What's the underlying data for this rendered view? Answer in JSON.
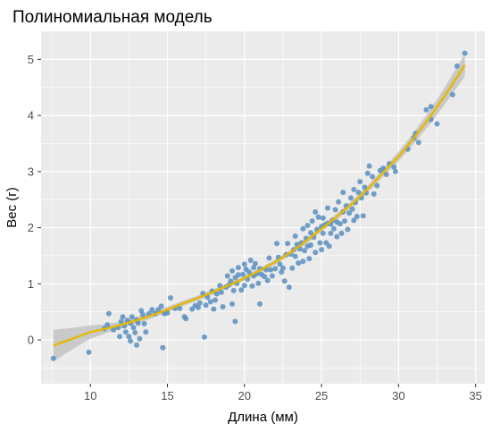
{
  "chart_data": {
    "type": "scatter",
    "title": "Полиномиальная модель",
    "xlabel": "Длина (мм)",
    "ylabel": "Вес (г)",
    "xlim": [
      6.8,
      35.6
    ],
    "ylim": [
      -0.78,
      5.5
    ],
    "x_ticks": [
      10,
      15,
      20,
      25,
      30,
      35
    ],
    "y_ticks": [
      0,
      1,
      2,
      3,
      4,
      5
    ],
    "grid": true,
    "colors": {
      "panel": "#ebebeb",
      "grid_major": "#ffffff",
      "points": "#5b8fc0",
      "fit_line": "#e6b800",
      "ribbon": "#bdbdbd"
    },
    "series": [
      {
        "type": "scatter",
        "values": [
          [
            7.6,
            -0.33
          ],
          [
            9.9,
            -0.22
          ],
          [
            10.9,
            0.2
          ],
          [
            11.1,
            0.27
          ],
          [
            11.2,
            0.47
          ],
          [
            11.5,
            0.18
          ],
          [
            11.8,
            0.22
          ],
          [
            11.9,
            0.06
          ],
          [
            12.0,
            0.33
          ],
          [
            12.1,
            0.41
          ],
          [
            12.2,
            0.25
          ],
          [
            12.3,
            0.14
          ],
          [
            12.4,
            0.35
          ],
          [
            12.5,
            0.06
          ],
          [
            12.6,
            0.3
          ],
          [
            12.6,
            -0.02
          ],
          [
            12.7,
            0.41
          ],
          [
            12.8,
            0.22
          ],
          [
            12.9,
            0.13
          ],
          [
            13.0,
            -0.09
          ],
          [
            13.0,
            0.36
          ],
          [
            13.1,
            0.3
          ],
          [
            13.2,
            0.02
          ],
          [
            13.3,
            0.52
          ],
          [
            13.4,
            0.45
          ],
          [
            13.5,
            0.29
          ],
          [
            13.6,
            0.14
          ],
          [
            13.8,
            0.47
          ],
          [
            14.0,
            0.54
          ],
          [
            14.2,
            0.47
          ],
          [
            14.4,
            0.54
          ],
          [
            14.6,
            0.6
          ],
          [
            14.8,
            0.47
          ],
          [
            15.0,
            0.48
          ],
          [
            14.7,
            -0.14
          ],
          [
            15.2,
            0.75
          ],
          [
            15.5,
            0.56
          ],
          [
            15.8,
            0.56
          ],
          [
            16.1,
            0.41
          ],
          [
            16.2,
            0.38
          ],
          [
            16.6,
            0.55
          ],
          [
            16.8,
            0.61
          ],
          [
            17.0,
            0.58
          ],
          [
            17.1,
            0.66
          ],
          [
            17.3,
            0.83
          ],
          [
            17.4,
            0.05
          ],
          [
            17.5,
            0.62
          ],
          [
            17.6,
            0.76
          ],
          [
            17.8,
            0.68
          ],
          [
            17.9,
            0.87
          ],
          [
            18.0,
            0.55
          ],
          [
            18.1,
            0.71
          ],
          [
            18.2,
            0.82
          ],
          [
            18.4,
            0.97
          ],
          [
            18.5,
            0.85
          ],
          [
            18.6,
            0.59
          ],
          [
            18.8,
            0.94
          ],
          [
            18.9,
            1.14
          ],
          [
            19.0,
            0.98
          ],
          [
            19.1,
            1.05
          ],
          [
            19.2,
            0.64
          ],
          [
            19.2,
            1.23
          ],
          [
            19.3,
            0.88
          ],
          [
            19.4,
            1.11
          ],
          [
            19.4,
            0.33
          ],
          [
            19.5,
            1.01
          ],
          [
            19.6,
            1.29
          ],
          [
            19.6,
            1.16
          ],
          [
            19.8,
            0.89
          ],
          [
            19.9,
            1.17
          ],
          [
            20.0,
            0.97
          ],
          [
            20.0,
            1.35
          ],
          [
            20.1,
            1.26
          ],
          [
            20.2,
            1.08
          ],
          [
            20.3,
            1.21
          ],
          [
            20.4,
            1.42
          ],
          [
            20.5,
            0.96
          ],
          [
            20.6,
            1.14
          ],
          [
            20.6,
            1.29
          ],
          [
            20.7,
            1.36
          ],
          [
            20.8,
            1.18
          ],
          [
            20.9,
            1.01
          ],
          [
            21.0,
            1.27
          ],
          [
            21.0,
            0.64
          ],
          [
            21.1,
            1.17
          ],
          [
            21.3,
            1.13
          ],
          [
            21.4,
            1.25
          ],
          [
            21.5,
            1.06
          ],
          [
            21.6,
            1.46
          ],
          [
            21.7,
            1.25
          ],
          [
            21.8,
            1.14
          ],
          [
            22.0,
            1.27
          ],
          [
            22.1,
            1.72
          ],
          [
            22.2,
            1.47
          ],
          [
            22.3,
            1.35
          ],
          [
            22.4,
            1.21
          ],
          [
            22.5,
            1.28
          ],
          [
            22.6,
            1.05
          ],
          [
            22.7,
            1.52
          ],
          [
            22.8,
            1.72
          ],
          [
            22.9,
            0.94
          ],
          [
            23.0,
            1.53
          ],
          [
            23.1,
            1.28
          ],
          [
            23.2,
            1.61
          ],
          [
            23.3,
            1.49
          ],
          [
            23.3,
            1.85
          ],
          [
            23.4,
            1.7
          ],
          [
            23.5,
            1.37
          ],
          [
            23.6,
            1.62
          ],
          [
            23.7,
            1.73
          ],
          [
            23.8,
            1.4
          ],
          [
            23.8,
            1.98
          ],
          [
            23.9,
            1.59
          ],
          [
            24.0,
            1.81
          ],
          [
            24.1,
            1.67
          ],
          [
            24.1,
            2.04
          ],
          [
            24.2,
            1.45
          ],
          [
            24.3,
            1.91
          ],
          [
            24.3,
            1.69
          ],
          [
            24.4,
            2.12
          ],
          [
            24.5,
            1.83
          ],
          [
            24.6,
            1.56
          ],
          [
            24.6,
            2.28
          ],
          [
            24.7,
            1.97
          ],
          [
            24.8,
            2.19
          ],
          [
            24.9,
            1.73
          ],
          [
            25.0,
            2.02
          ],
          [
            25.0,
            1.61
          ],
          [
            25.1,
            2.17
          ],
          [
            25.1,
            1.9
          ],
          [
            25.2,
            2.05
          ],
          [
            25.3,
            1.73
          ],
          [
            25.4,
            2.35
          ],
          [
            25.4,
            2.08
          ],
          [
            25.5,
            1.67
          ],
          [
            25.6,
            1.9
          ],
          [
            25.6,
            2.06
          ],
          [
            25.7,
            2.13
          ],
          [
            25.8,
            1.98
          ],
          [
            25.9,
            2.32
          ],
          [
            26.0,
            2.1
          ],
          [
            26.0,
            1.84
          ],
          [
            26.1,
            2.46
          ],
          [
            26.2,
            2.07
          ],
          [
            26.3,
            1.9
          ],
          [
            26.4,
            2.28
          ],
          [
            26.4,
            2.63
          ],
          [
            26.5,
            2.12
          ],
          [
            26.6,
            2.39
          ],
          [
            26.7,
            1.97
          ],
          [
            26.8,
            2.26
          ],
          [
            26.9,
            2.53
          ],
          [
            27.0,
            2.33
          ],
          [
            27.1,
            2.13
          ],
          [
            27.1,
            2.68
          ],
          [
            27.2,
            2.45
          ],
          [
            27.3,
            2.2
          ],
          [
            27.4,
            2.63
          ],
          [
            27.5,
            2.82
          ],
          [
            27.6,
            2.53
          ],
          [
            27.7,
            2.21
          ],
          [
            27.8,
            2.72
          ],
          [
            27.9,
            2.62
          ],
          [
            28.0,
            2.97
          ],
          [
            28.1,
            3.1
          ],
          [
            28.3,
            2.91
          ],
          [
            28.4,
            2.6
          ],
          [
            28.6,
            2.75
          ],
          [
            28.8,
            3.02
          ],
          [
            29.0,
            3.06
          ],
          [
            29.2,
            2.95
          ],
          [
            29.4,
            3.14
          ],
          [
            29.7,
            3.08
          ],
          [
            29.8,
            3.0
          ],
          [
            30.6,
            3.4
          ],
          [
            31.0,
            3.6
          ],
          [
            31.1,
            3.68
          ],
          [
            31.3,
            3.52
          ],
          [
            31.8,
            4.1
          ],
          [
            32.1,
            4.16
          ],
          [
            32.1,
            3.93
          ],
          [
            32.5,
            3.85
          ],
          [
            33.5,
            4.37
          ],
          [
            33.8,
            4.88
          ],
          [
            34.3,
            5.11
          ]
        ]
      },
      {
        "type": "line",
        "values": [
          [
            7.6,
            -0.1
          ],
          [
            9,
            0.04
          ],
          [
            10,
            0.14
          ],
          [
            11,
            0.2
          ],
          [
            12,
            0.27
          ],
          [
            13,
            0.35
          ],
          [
            14,
            0.44
          ],
          [
            15,
            0.54
          ],
          [
            16,
            0.65
          ],
          [
            17,
            0.75
          ],
          [
            18,
            0.86
          ],
          [
            19,
            0.98
          ],
          [
            20,
            1.1
          ],
          [
            21,
            1.24
          ],
          [
            22,
            1.39
          ],
          [
            23,
            1.56
          ],
          [
            24,
            1.76
          ],
          [
            25,
            1.98
          ],
          [
            26,
            2.2
          ],
          [
            27,
            2.43
          ],
          [
            28,
            2.69
          ],
          [
            29,
            2.98
          ],
          [
            30,
            3.27
          ],
          [
            31,
            3.6
          ],
          [
            32,
            3.96
          ],
          [
            33,
            4.35
          ],
          [
            34,
            4.77
          ],
          [
            34.3,
            4.9
          ]
        ]
      }
    ],
    "ribbon_halfwidth": [
      [
        7.6,
        0.28
      ],
      [
        9,
        0.18
      ],
      [
        10,
        0.12
      ],
      [
        11,
        0.08
      ],
      [
        12,
        0.06
      ],
      [
        15,
        0.05
      ],
      [
        20,
        0.04
      ],
      [
        25,
        0.05
      ],
      [
        29,
        0.07
      ],
      [
        31,
        0.1
      ],
      [
        33,
        0.15
      ],
      [
        34.3,
        0.2
      ]
    ]
  }
}
